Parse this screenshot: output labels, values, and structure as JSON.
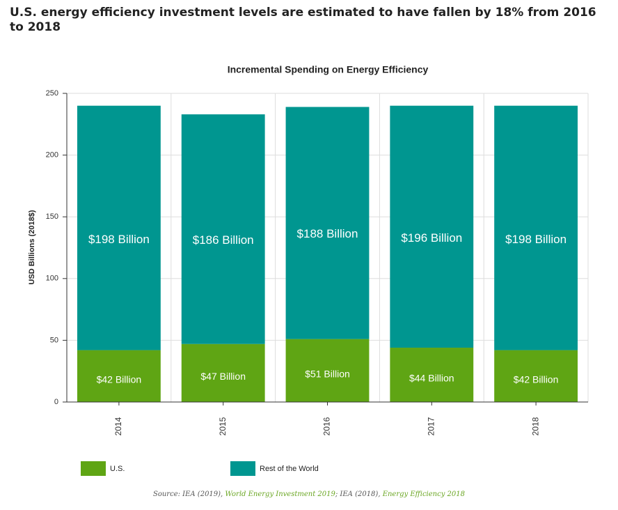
{
  "title": "U.S. energy efficiency investment levels are estimated to have fallen by 18% from 2016 to 2018",
  "chart_data": {
    "type": "bar",
    "stacked": true,
    "title": "Incremental Spending on Energy Efficiency",
    "y_label": "USD Billions (2018$)",
    "categories": [
      "2014",
      "2015",
      "2016",
      "2017",
      "2018"
    ],
    "series": [
      {
        "name": "U.S.",
        "color": "#5fa514",
        "values": [
          42,
          47,
          51,
          44,
          42
        ],
        "value_labels": [
          "$42 Billion",
          "$47 Billion",
          "$51 Billion",
          "$44 Billion",
          "$42 Billion"
        ]
      },
      {
        "name": "Rest of the World",
        "color": "#009690",
        "values": [
          198,
          186,
          188,
          196,
          198
        ],
        "value_labels": [
          "$198 Billion",
          "$186 Billion",
          "$188 Billion",
          "$196 Billion",
          "$198 Billion"
        ]
      }
    ],
    "ylim": [
      0,
      250
    ],
    "yticks": [
      0,
      50,
      100,
      150,
      200,
      250
    ],
    "grid": true
  },
  "source": [
    "Source: IEA (2019), ",
    "World Energy Investment 2019",
    "; IEA (2018), ",
    "Energy Efficiency 2018"
  ]
}
